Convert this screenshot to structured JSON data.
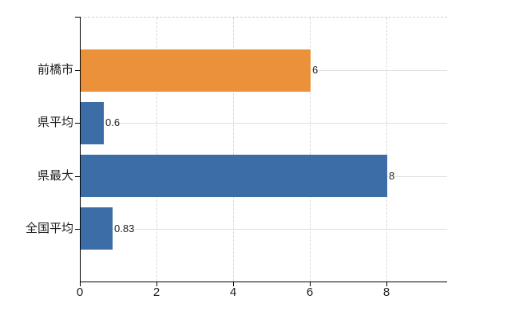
{
  "chart_data": {
    "type": "bar",
    "orientation": "horizontal",
    "title": "",
    "xlabel": "",
    "ylabel": "",
    "categories": [
      "前橋市",
      "県平均",
      "県最大",
      "全国平均"
    ],
    "values": [
      6,
      0.6,
      8,
      0.83
    ],
    "value_labels": [
      "6",
      "0.6",
      "8",
      "0.83"
    ],
    "series": [
      {
        "name": "values",
        "values": [
          6,
          0.6,
          8,
          0.83
        ]
      }
    ],
    "bar_colors": [
      "#ea9139",
      "#3c6da6",
      "#3c6da6",
      "#3c6da6"
    ],
    "xticks": [
      0,
      2,
      4,
      6,
      8
    ],
    "xtick_labels": [
      "0",
      "2",
      "4",
      "6",
      "8"
    ],
    "xlim": [
      0,
      9.58
    ],
    "grid": {
      "vertical": "dashed",
      "horizontal": "solid",
      "top_border": "dashed"
    },
    "legend": null
  },
  "colors": {
    "bar_orange": "#ea9139",
    "bar_blue": "#3c6da6",
    "axis": "#000000",
    "text": "#1f1f1f",
    "vgrid": "#d8d8d8",
    "hgrid": "#dde1dd",
    "top_border": "#cccccc",
    "background": "#ffffff"
  }
}
